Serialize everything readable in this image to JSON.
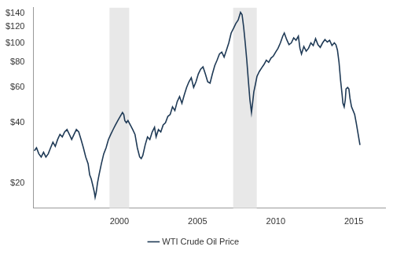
{
  "chart_data": {
    "type": "line",
    "x": [
      1994.56,
      1994.7,
      1994.85,
      1995.0,
      1995.15,
      1995.3,
      1995.45,
      1995.6,
      1995.75,
      1995.9,
      1996.05,
      1996.2,
      1996.35,
      1996.5,
      1996.65,
      1996.8,
      1996.95,
      1997.1,
      1997.25,
      1997.4,
      1997.55,
      1997.7,
      1997.85,
      1998.0,
      1998.1,
      1998.2,
      1998.3,
      1998.4,
      1998.45,
      1998.52,
      1998.6,
      1998.7,
      1998.85,
      1999.0,
      1999.15,
      1999.3,
      1999.45,
      1999.6,
      1999.75,
      1999.9,
      2000.05,
      2000.2,
      2000.28,
      2000.35,
      2000.45,
      2000.55,
      2000.7,
      2000.85,
      2001.0,
      2001.15,
      2001.3,
      2001.4,
      2001.5,
      2001.65,
      2001.8,
      2001.95,
      2002.1,
      2002.25,
      2002.35,
      2002.5,
      2002.65,
      2002.8,
      2002.95,
      2003.1,
      2003.25,
      2003.4,
      2003.55,
      2003.7,
      2003.85,
      2004.0,
      2004.15,
      2004.3,
      2004.45,
      2004.6,
      2004.75,
      2004.9,
      2005.05,
      2005.2,
      2005.35,
      2005.5,
      2005.65,
      2005.8,
      2005.95,
      2006.1,
      2006.25,
      2006.4,
      2006.55,
      2006.7,
      2006.85,
      2007.0,
      2007.15,
      2007.3,
      2007.45,
      2007.6,
      2007.75,
      2007.85,
      2007.95,
      2008.05,
      2008.15,
      2008.25,
      2008.35,
      2008.45,
      2008.52,
      2008.6,
      2008.7,
      2008.8,
      2008.95,
      2009.1,
      2009.25,
      2009.4,
      2009.55,
      2009.7,
      2009.85,
      2010.0,
      2010.15,
      2010.3,
      2010.45,
      2010.55,
      2010.7,
      2010.85,
      2011.0,
      2011.15,
      2011.3,
      2011.45,
      2011.55,
      2011.65,
      2011.8,
      2011.95,
      2012.1,
      2012.25,
      2012.4,
      2012.55,
      2012.7,
      2012.85,
      2013.0,
      2013.15,
      2013.3,
      2013.45,
      2013.6,
      2013.75,
      2013.85,
      2013.95,
      2014.05,
      2014.15,
      2014.25,
      2014.3,
      2014.38,
      2014.45,
      2014.5,
      2014.6,
      2014.68,
      2014.75,
      2014.85,
      2014.95,
      2015.05,
      2015.15,
      2015.25,
      2015.39
    ],
    "series": [
      {
        "name": "WTI Crude Oil Price",
        "color": "#1f3a56",
        "values": [
          29,
          30,
          28,
          27,
          28.5,
          27,
          28,
          30,
          32,
          30.5,
          33,
          35,
          34,
          36,
          37,
          35,
          33,
          35,
          37,
          36,
          33,
          30,
          27,
          25,
          22,
          21,
          19.5,
          18,
          17,
          18,
          20,
          22,
          25,
          28,
          30,
          33,
          35,
          37,
          39,
          41,
          43,
          45,
          44,
          41,
          40,
          41,
          39,
          37,
          35,
          30,
          27,
          26.5,
          27.5,
          31,
          34,
          33,
          36,
          38,
          34,
          37,
          36,
          39,
          40,
          43,
          44,
          48,
          46,
          51,
          54,
          50,
          55,
          60,
          64,
          67,
          60,
          64,
          70,
          74,
          76,
          70,
          64,
          63,
          70,
          77,
          82,
          88,
          90,
          85,
          92,
          100,
          112,
          118,
          125,
          130,
          142,
          138,
          120,
          100,
          82,
          65,
          52,
          45,
          50,
          57,
          62,
          68,
          72,
          75,
          78,
          82,
          80,
          84,
          86,
          90,
          94,
          100,
          108,
          112,
          104,
          98,
          100,
          106,
          103,
          108,
          94,
          88,
          96,
          91,
          94,
          100,
          97,
          105,
          98,
          95,
          100,
          104,
          101,
          103,
          97,
          100,
          98,
          92,
          80,
          65,
          55,
          50,
          48,
          52,
          59,
          60,
          59,
          53,
          48,
          46,
          44,
          40,
          36,
          31
        ]
      }
    ],
    "shaded_ranges": [
      [
        1999.37,
        2000.63
      ],
      [
        2007.28,
        2008.79
      ]
    ],
    "xlim": [
      1994.5,
      2017
    ],
    "xticks": [
      2000,
      2005,
      2010,
      2015
    ],
    "ylim": [
      15,
      150
    ],
    "yticks": [
      {
        "value": 20,
        "label": "$20"
      },
      {
        "value": 40,
        "label": "$40"
      },
      {
        "value": 60,
        "label": "$60"
      },
      {
        "value": 80,
        "label": "$80"
      },
      {
        "value": 100,
        "label": "$100"
      },
      {
        "value": 120,
        "label": "$120"
      },
      {
        "value": 140,
        "label": "$140"
      }
    ],
    "log": "y",
    "grid": false,
    "legend": "bottom"
  }
}
